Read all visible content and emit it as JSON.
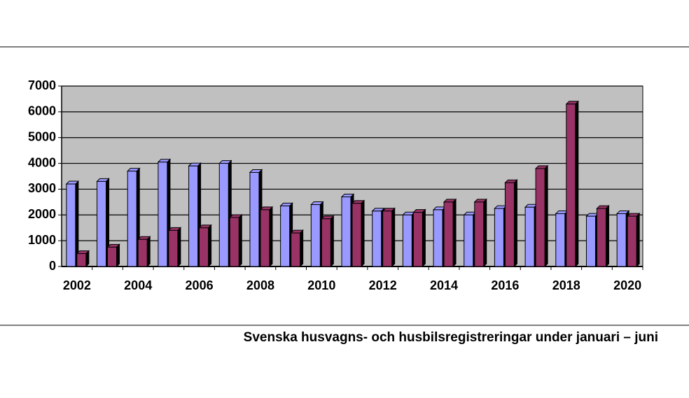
{
  "chart_data": {
    "type": "bar",
    "caption": "Svenska husvagns- och husbilsregistreringar under januari – juni",
    "categories": [
      "2002",
      null,
      "2004",
      null,
      "2006",
      null,
      "2008",
      null,
      "2010",
      null,
      "2012",
      null,
      "2014",
      null,
      "2016",
      null,
      "2018",
      null,
      "2020"
    ],
    "series": [
      {
        "color": "#9999ff",
        "values": [
          3200,
          3300,
          3700,
          4050,
          3900,
          4000,
          3650,
          2350,
          2400,
          2700,
          2150,
          2000,
          2200,
          2000,
          2250,
          2300,
          2050,
          1950,
          2050
        ]
      },
      {
        "color": "#993366",
        "values": [
          500,
          750,
          1050,
          1400,
          1500,
          1900,
          2200,
          1300,
          1850,
          2450,
          2150,
          2100,
          2500,
          2500,
          3250,
          3800,
          6300,
          2250,
          1950
        ]
      }
    ],
    "ylim": [
      0,
      7000
    ],
    "yticks": [
      0,
      1000,
      2000,
      3000,
      4000,
      5000,
      6000,
      7000
    ],
    "grid": true,
    "background": "#c0c0c0"
  }
}
